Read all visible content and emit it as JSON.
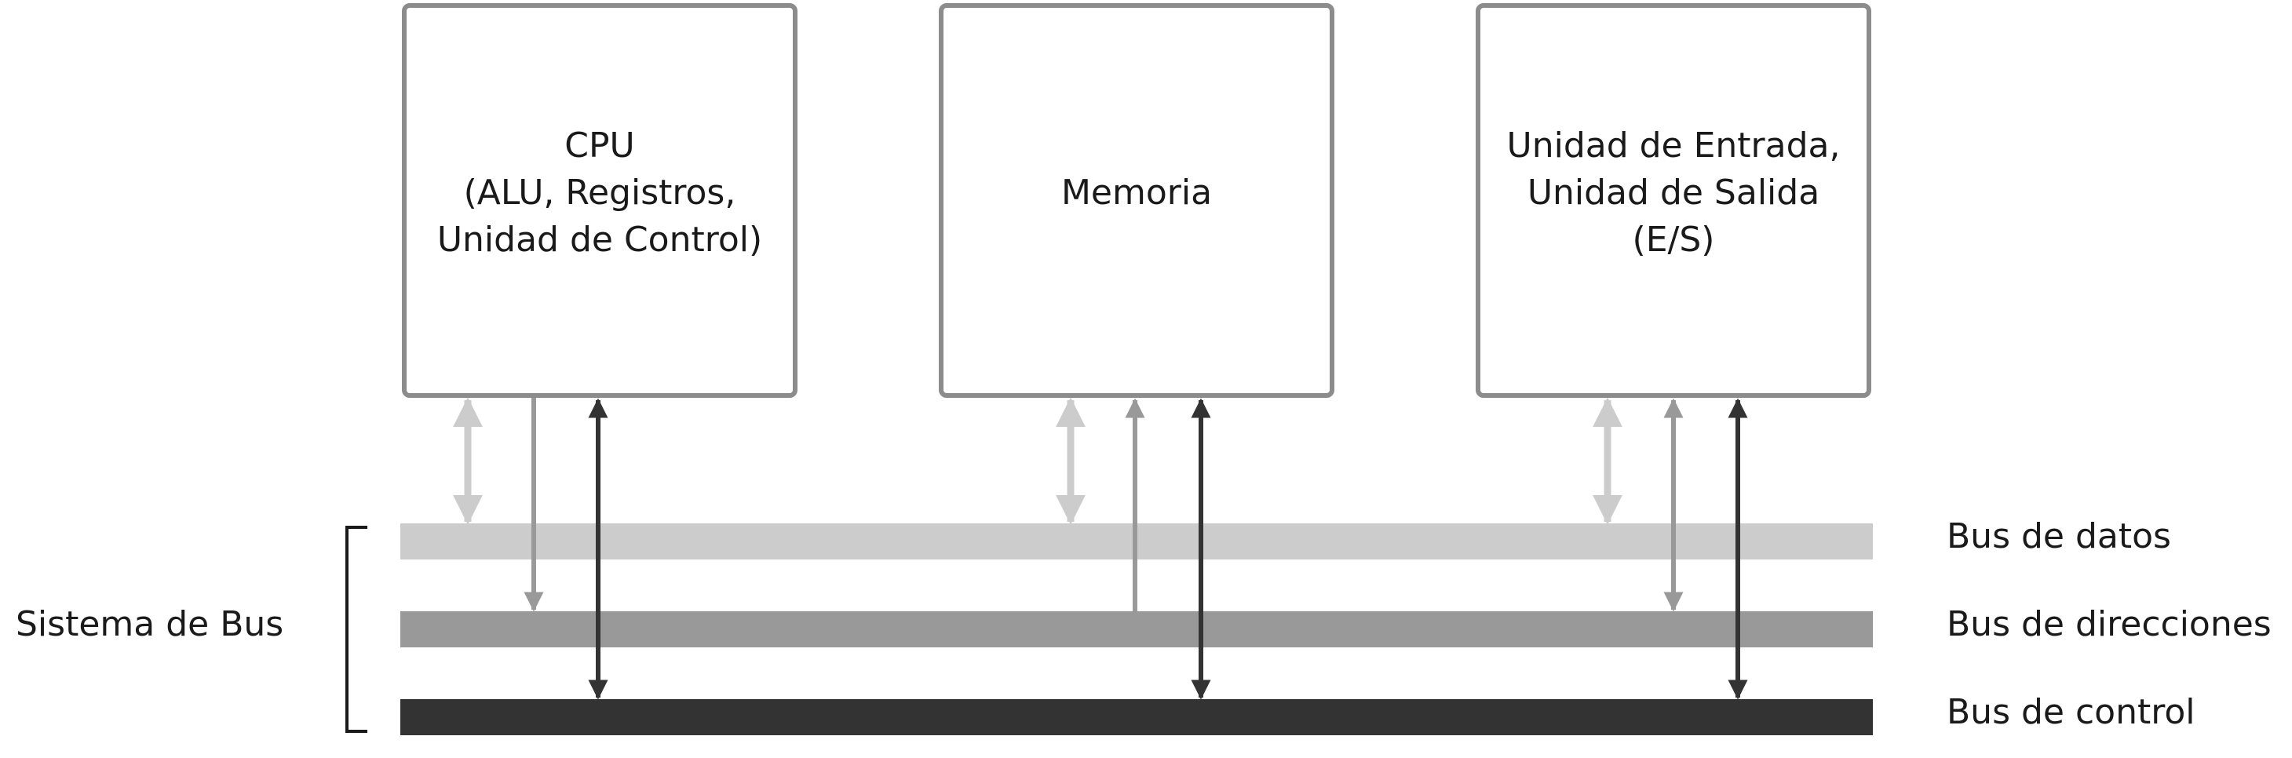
{
  "components": {
    "cpu": {
      "lines": [
        "CPU",
        "(ALU, Registros,",
        "Unidad de Control)"
      ]
    },
    "memory": {
      "lines": [
        "Memoria"
      ]
    },
    "io": {
      "lines": [
        "Unidad de Entrada,",
        "Unidad de Salida",
        "(E/S)"
      ]
    }
  },
  "buses": {
    "data": {
      "label": "Bus de datos",
      "color": "#cccccc"
    },
    "address": {
      "label": "Bus de direcciones",
      "color": "#999999"
    },
    "control": {
      "label": "Bus de control",
      "color": "#333333"
    }
  },
  "system_label": "Sistema de Bus"
}
